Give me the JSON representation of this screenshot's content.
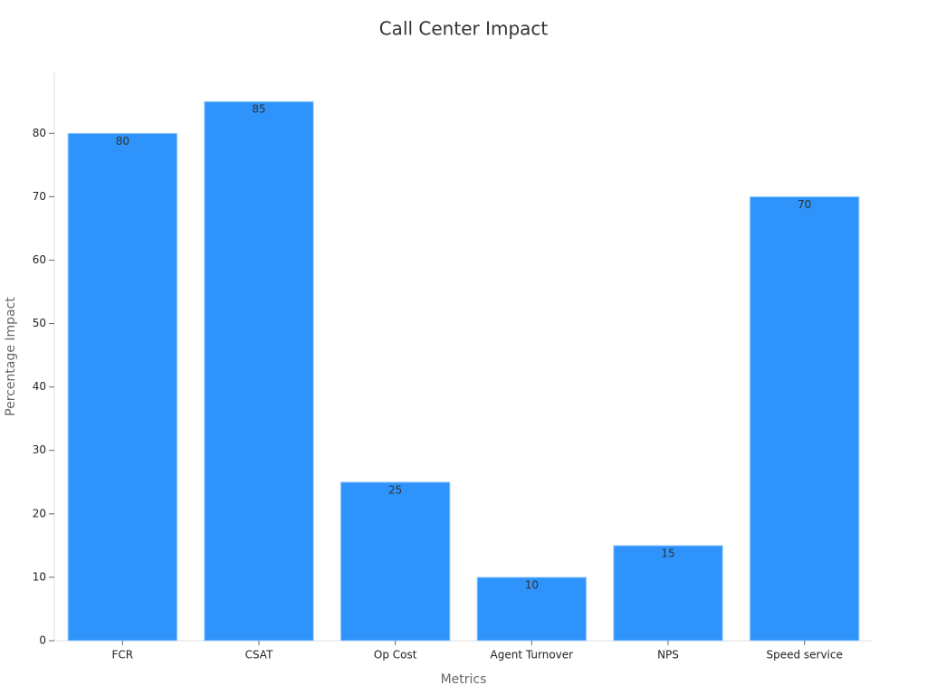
{
  "chart_data": {
    "type": "bar",
    "title": "Call Center Impact",
    "x_label": "Metrics",
    "y_label": "Percentage Impact",
    "categories": [
      "FCR",
      "CSAT",
      "Op Cost",
      "Agent Turnover",
      "NPS",
      "Speed service"
    ],
    "values": [
      80,
      85,
      25,
      10,
      15,
      70
    ],
    "color": "#2e93fa",
    "ylim": [
      0,
      89.6
    ],
    "yticks": [
      0,
      10,
      20,
      30,
      40,
      50,
      60,
      70,
      80
    ],
    "grid": false,
    "data_labels": true
  }
}
